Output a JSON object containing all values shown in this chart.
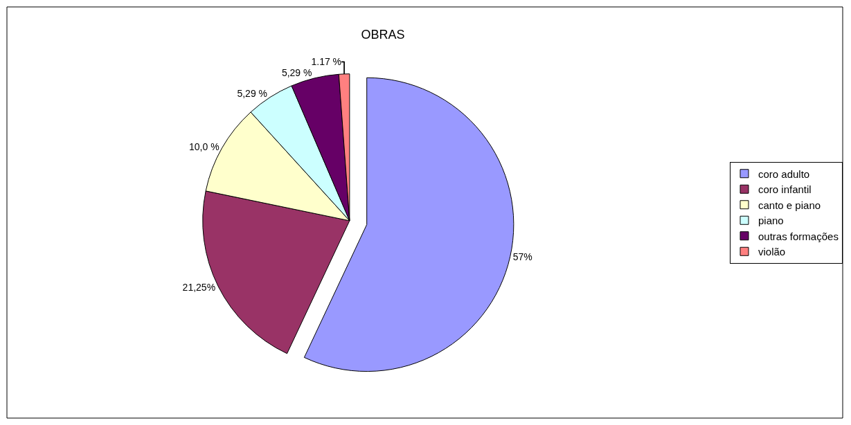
{
  "chart_data": {
    "type": "pie",
    "title": "OBRAS",
    "categories": [
      "coro adulto",
      "coro infantil",
      "canto e piano",
      "piano",
      "outras formações",
      "violão"
    ],
    "values": [
      57,
      21.25,
      10.0,
      5.29,
      5.29,
      1.17
    ],
    "value_labels": [
      "57%",
      "21,25%",
      "10,0 %",
      "5,29 %",
      "5,29 %",
      "1.17 %"
    ],
    "colors": [
      "#9999ff",
      "#993366",
      "#ffffcc",
      "#ccffff",
      "#660066",
      "#ff8080"
    ],
    "legend": "right"
  }
}
